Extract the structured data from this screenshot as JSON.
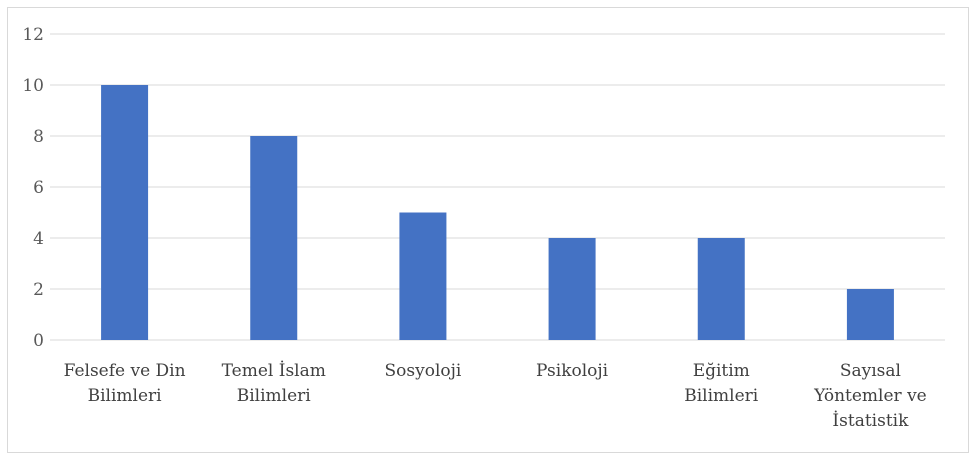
{
  "chart_data": {
    "type": "bar",
    "categories": [
      [
        "Felsefe ve Din",
        "Bilimleri"
      ],
      [
        "Temel İslam",
        "Bilimleri"
      ],
      [
        "Sosyoloji"
      ],
      [
        "Psikoloji"
      ],
      [
        "Eğitim",
        "Bilimleri"
      ],
      [
        "Sayısal",
        "Yöntemler ve",
        "İstatistik"
      ]
    ],
    "values": [
      10,
      8,
      5,
      4,
      4,
      2
    ],
    "ylim": [
      0,
      12
    ],
    "yticks": [
      "0",
      "2",
      "4",
      "6",
      "8",
      "10",
      "12"
    ],
    "grid": true,
    "bar_color": "#4472c4",
    "grid_color": "#d9d9d9",
    "title": "",
    "xlabel": "",
    "ylabel": ""
  }
}
